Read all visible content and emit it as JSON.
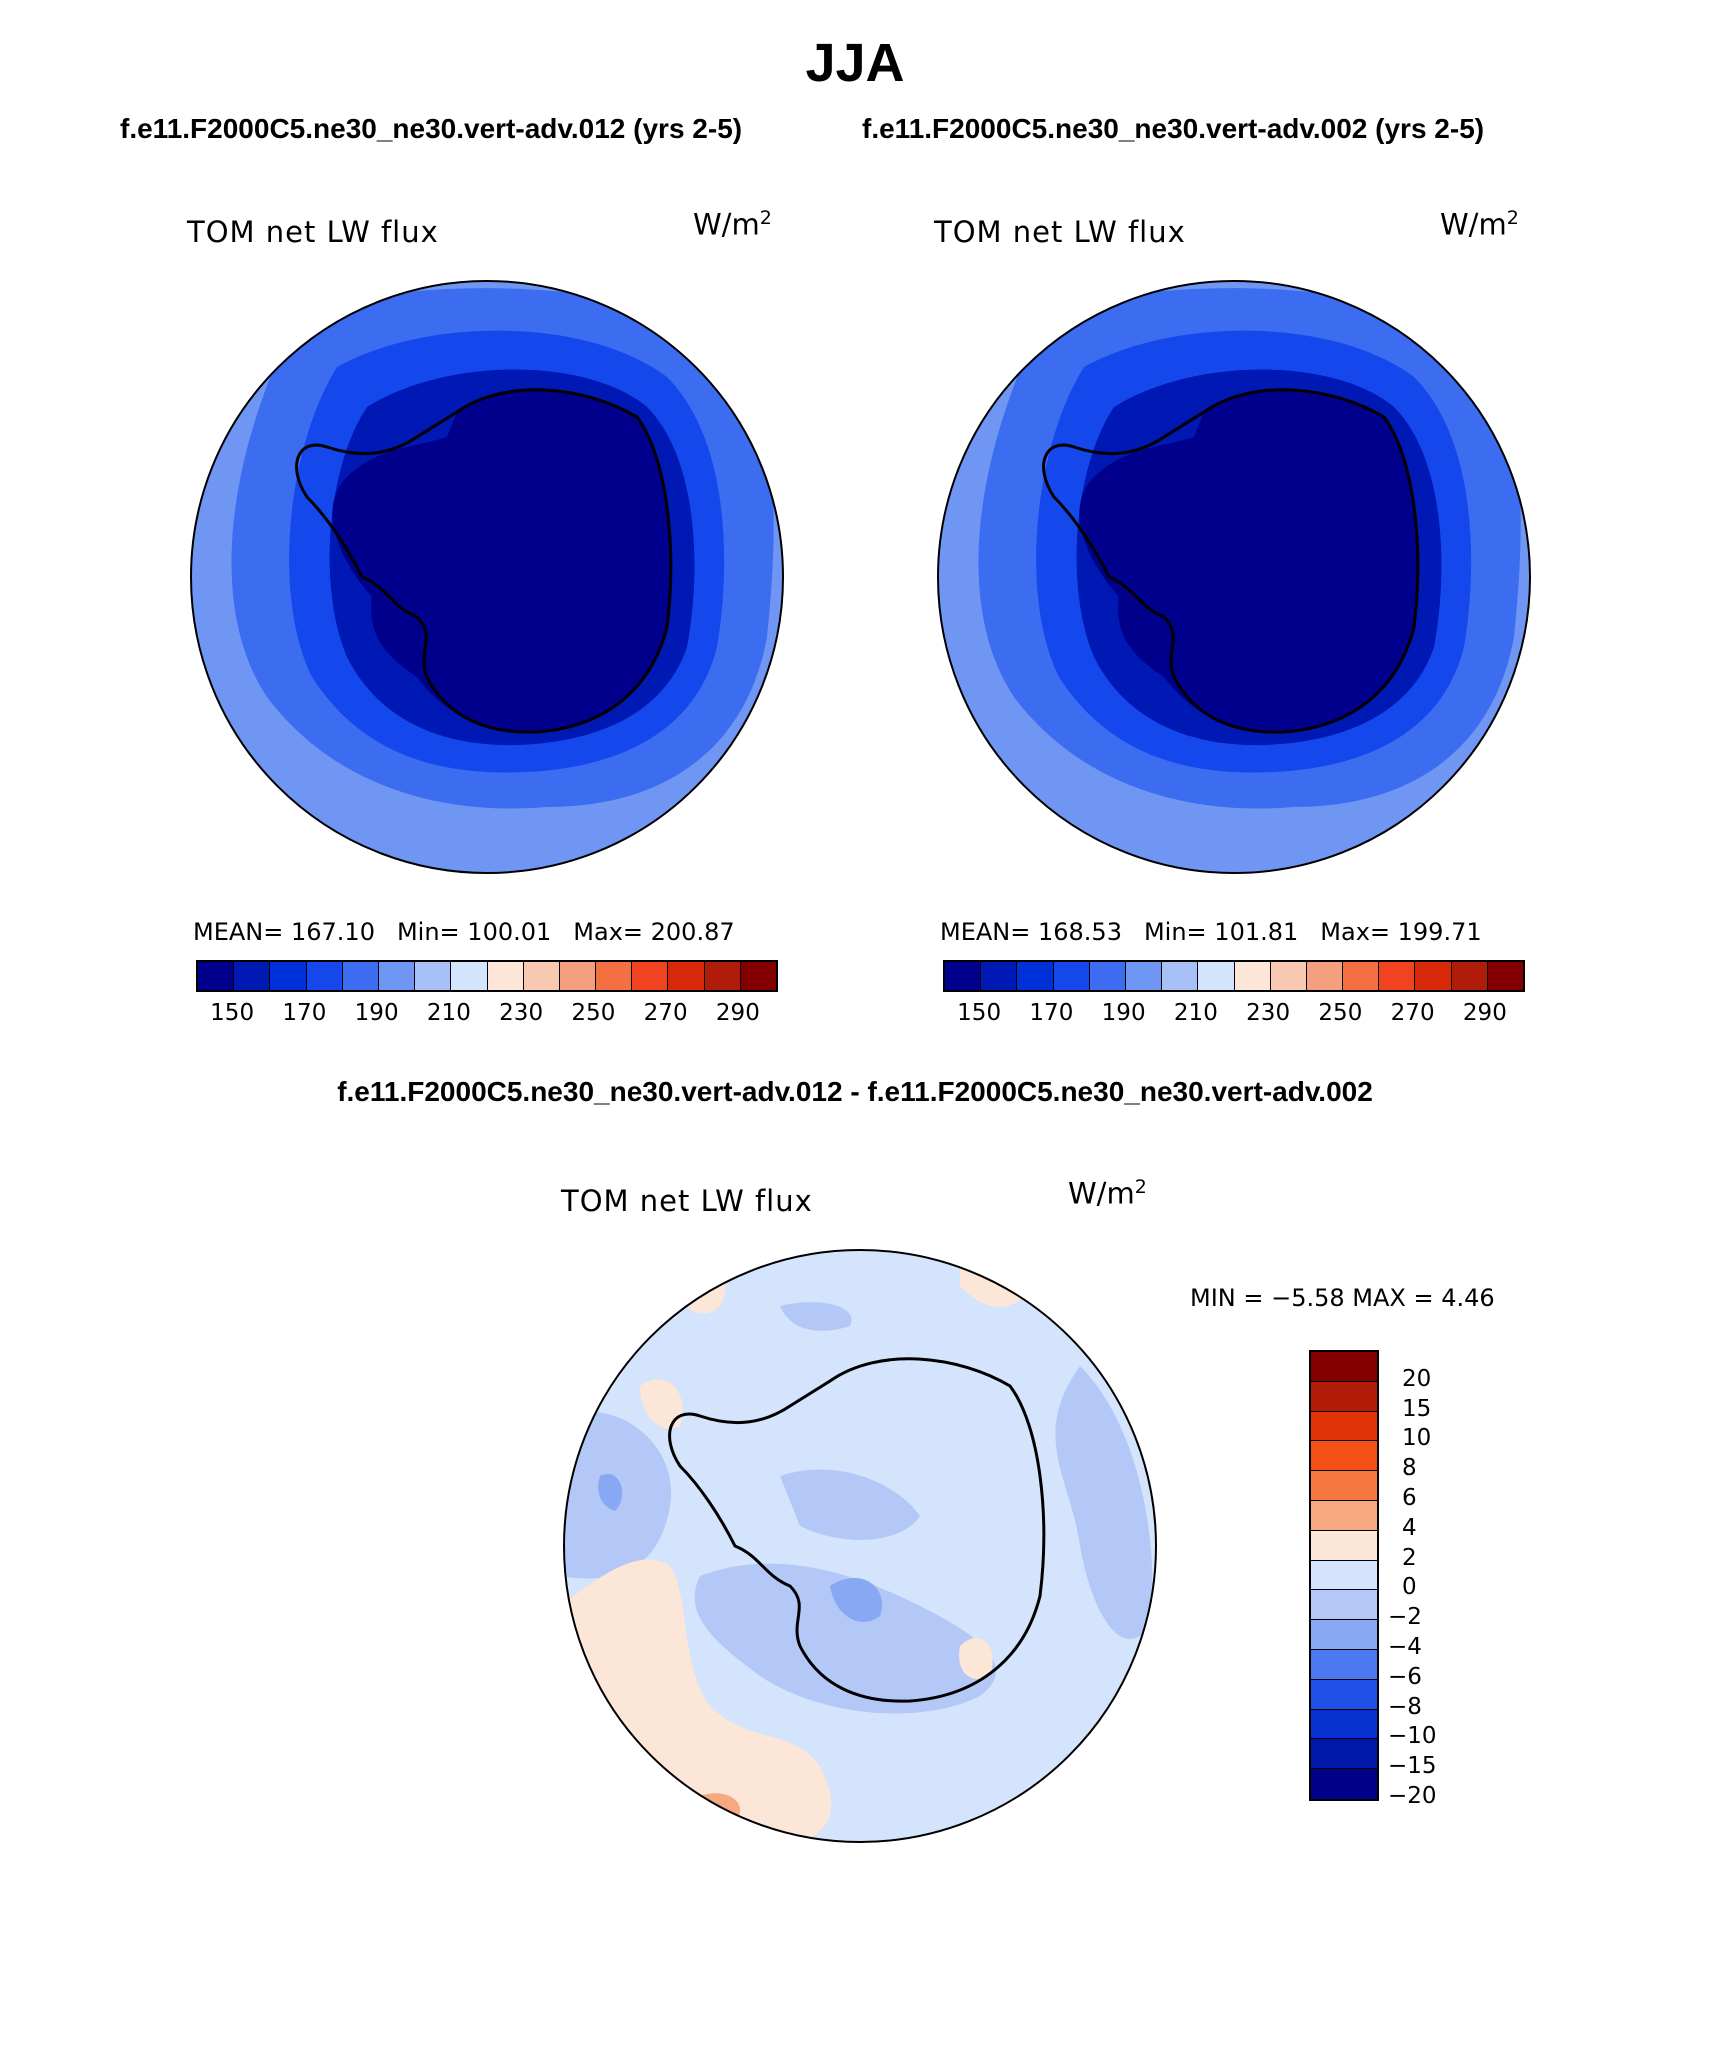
{
  "title": "JJA",
  "panels": {
    "left": {
      "case": "f.e11.F2000C5.ne30_ne30.vert-adv.012 (yrs 2-5)",
      "label": "TOM net LW flux",
      "units_base": "W/m",
      "units_exp": "2",
      "stats": {
        "mean": "MEAN= 167.10",
        "min": "Min= 100.01",
        "max": "Max= 200.87"
      }
    },
    "right": {
      "case": "f.e11.F2000C5.ne30_ne30.vert-adv.002 (yrs 2-5)",
      "label": "TOM net LW flux",
      "units_base": "W/m",
      "units_exp": "2",
      "stats": {
        "mean": "MEAN= 168.53",
        "min": "Min= 101.81",
        "max": "Max= 199.71"
      }
    },
    "diff": {
      "case": "f.e11.F2000C5.ne30_ne30.vert-adv.012 - f.e11.F2000C5.ne30_ne30.vert-adv.002",
      "label": "TOM net LW flux",
      "units_base": "W/m",
      "units_exp": "2",
      "minmax": "MIN =   −5.58 MAX =    4.46"
    }
  },
  "abs_colorbar": {
    "colors": [
      "#00008c",
      "#0018b4",
      "#0030d8",
      "#1448ec",
      "#3c6cf0",
      "#7096f4",
      "#a8c0f8",
      "#d4e4fc",
      "#fce6d8",
      "#f8c8b0",
      "#f4a080",
      "#f47040",
      "#f04420",
      "#d82808",
      "#b01c08",
      "#840000"
    ],
    "tick_labels": [
      "150",
      "170",
      "190",
      "210",
      "230",
      "250",
      "270",
      "290"
    ]
  },
  "diff_colorbar": {
    "colors": [
      "#840000",
      "#b01c08",
      "#e03408",
      "#f45018",
      "#f47840",
      "#f8a880",
      "#fce6d8",
      "#d4e4fc",
      "#b4c8f8",
      "#88a8f4",
      "#4c78f0",
      "#2050e8",
      "#0830d0",
      "#0018a8",
      "#000088"
    ],
    "tick_labels": [
      "20",
      "15",
      "10",
      "8",
      "6",
      "4",
      "2",
      "0",
      "−2",
      "−4",
      "−6",
      "−8",
      "−10",
      "−15",
      "−20"
    ]
  },
  "map_fields": {
    "region": "Antarctica / Southern Ocean (polar stereographic)",
    "left_colors": {
      "ocean_outer": "#7096f4",
      "ocean_mid": "#3c6cf0",
      "ocean_inner": "#1448ec",
      "coast": "#0018b4",
      "continent": "#00008c"
    },
    "right_colors": {
      "ocean_outer": "#7096f4",
      "ocean_mid": "#3c6cf0",
      "ocean_inner": "#1448ec",
      "coast": "#0018b4",
      "continent": "#00008c"
    },
    "diff_colors": {
      "background": "#d4e4fc",
      "neg_2": "#b4c8f8",
      "neg_4": "#88a8f4",
      "pos_2": "#fce6d8",
      "pos_4": "#f8a880"
    }
  }
}
